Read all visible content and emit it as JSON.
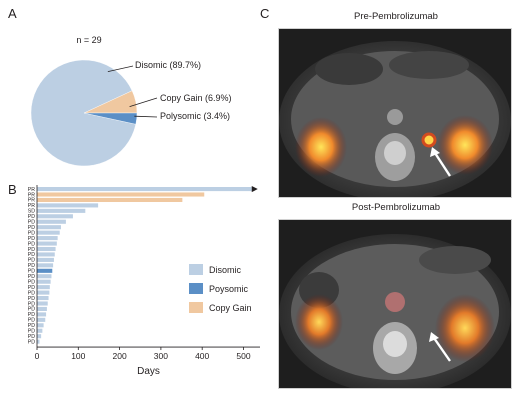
{
  "panels": {
    "a": "A",
    "b": "B",
    "c": "C"
  },
  "pie": {
    "n_label": "n = 29",
    "slices": [
      {
        "label": "Disomic (89.7%)",
        "percent": 89.7,
        "color": "#bccfe3"
      },
      {
        "label": "Copy Gain (6.9%)",
        "percent": 6.9,
        "color": "#f0c8a0"
      },
      {
        "label": "Polysomic (3.4%)",
        "percent": 3.4,
        "color": "#5b8fc6"
      }
    ]
  },
  "bars": {
    "xlabel": "Days",
    "xticks": [
      "0",
      "100",
      "200",
      "300",
      "400",
      "500"
    ],
    "legend": [
      {
        "label": "Disomic",
        "color": "#bccfe3"
      },
      {
        "label": "Poysomic",
        "color": "#5b8fc6"
      },
      {
        "label": "Copy Gain",
        "color": "#f0c8a0"
      }
    ]
  },
  "images": {
    "top_title": "Pre-Pembrolizumab",
    "bottom_title": "Post-Pembrolizumab"
  },
  "chart_data": [
    {
      "type": "pie",
      "title": "n = 29",
      "categories": [
        "Disomic",
        "Copy Gain",
        "Polysomic"
      ],
      "values": [
        89.7,
        6.9,
        3.4
      ],
      "colors": [
        "#bccfe3",
        "#f0c8a0",
        "#5b8fc6"
      ]
    },
    {
      "type": "bar",
      "orientation": "horizontal",
      "xlabel": "Days",
      "xlim": [
        0,
        540
      ],
      "xticks": [
        0,
        100,
        200,
        300,
        400,
        500
      ],
      "legend_position": "right",
      "categories": [
        "PR",
        "PR",
        "PR",
        "PR",
        "SD",
        "PD",
        "PD",
        "PD",
        "PD",
        "PD",
        "PD",
        "PD",
        "PD",
        "PD",
        "PD",
        "PD",
        "PD",
        "PD",
        "PD",
        "PD",
        "PD",
        "PD",
        "PD",
        "PD",
        "PD",
        "PD",
        "PD",
        "PD",
        "PD"
      ],
      "values": [
        520,
        405,
        352,
        148,
        117,
        87,
        70,
        58,
        55,
        50,
        48,
        45,
        43,
        41,
        39,
        37,
        35,
        33,
        31,
        30,
        28,
        26,
        24,
        22,
        20,
        16,
        13,
        10,
        6
      ],
      "groups": [
        "Disomic",
        "Copy Gain",
        "Copy Gain",
        "Disomic",
        "Disomic",
        "Disomic",
        "Disomic",
        "Disomic",
        "Disomic",
        "Disomic",
        "Disomic",
        "Disomic",
        "Disomic",
        "Disomic",
        "Disomic",
        "Polysomic",
        "Disomic",
        "Disomic",
        "Disomic",
        "Disomic",
        "Disomic",
        "Disomic",
        "Disomic",
        "Disomic",
        "Disomic",
        "Disomic",
        "Disomic",
        "Disomic",
        "Disomic"
      ],
      "ongoing": [
        true,
        false,
        false,
        false,
        false,
        false,
        false,
        false,
        false,
        false,
        false,
        false,
        false,
        false,
        false,
        false,
        false,
        false,
        false,
        false,
        false,
        false,
        false,
        false,
        false,
        false,
        false,
        false,
        false
      ]
    }
  ]
}
